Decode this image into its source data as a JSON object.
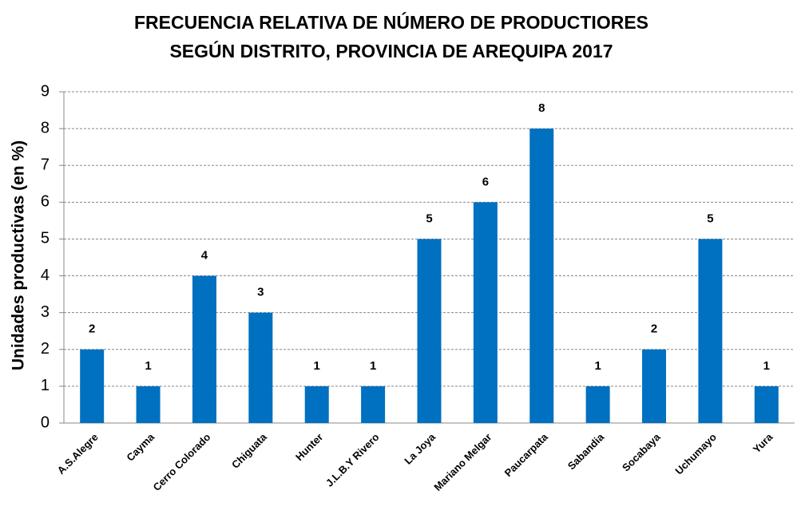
{
  "chart_data": {
    "type": "bar",
    "title": [
      "FRECUENCIA RELATIVA  DE NÚMERO DE PRODUCTIORES",
      "SEGÚN DISTRITO, PROVINCIA DE AREQUIPA 2017"
    ],
    "y_label": "Unidades  productivas  (en %)",
    "categories": [
      "A.S.Alegre",
      "Cayma",
      "Cerro Colorado",
      "Chiguata",
      "Hunter",
      "J.L.B.Y Rivero",
      "La Joya",
      "Mariano Melgar",
      "Paucarpata",
      "Sabandia",
      "Socabaya",
      "Uchumayo",
      "Yura"
    ],
    "values": [
      2,
      1,
      4,
      3,
      1,
      1,
      5,
      6,
      8,
      1,
      2,
      5,
      1
    ],
    "color": "#0070c0",
    "ylim": [
      0,
      9
    ],
    "yticks": [
      0,
      1,
      2,
      3,
      4,
      5,
      6,
      7,
      8,
      9
    ],
    "grid": true
  }
}
